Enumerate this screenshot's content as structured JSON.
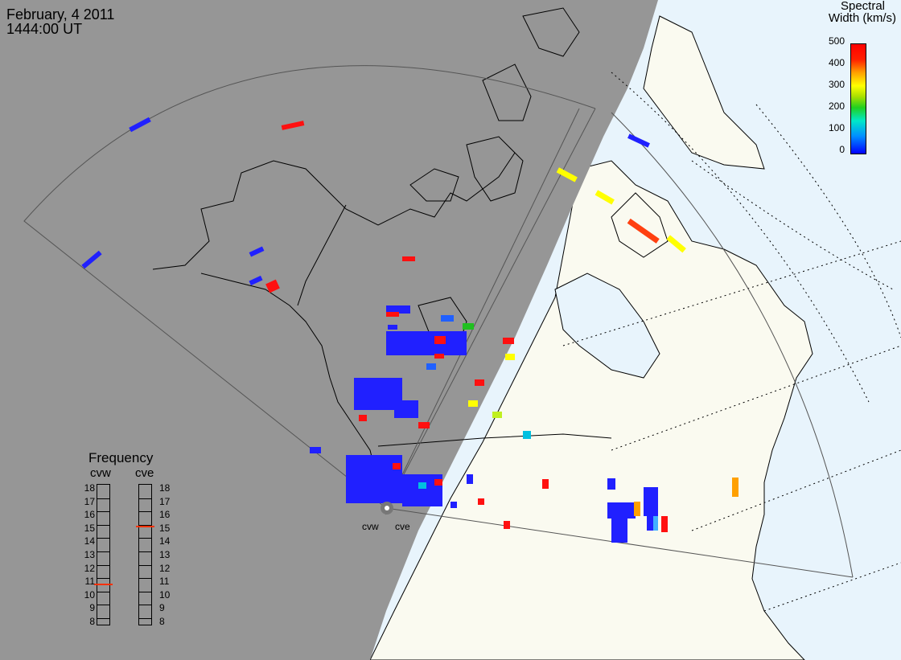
{
  "title": {
    "date": "February, 4 2011",
    "time": "1444:00 UT"
  },
  "colorbar": {
    "title_line1": "Spectral",
    "title_line2": "Width (km/s)",
    "ticks": [
      "500",
      "400",
      "300",
      "200",
      "100",
      "0"
    ]
  },
  "frequency_panel": {
    "title": "Frequency",
    "radar_left": "cvw",
    "radar_right": "cve",
    "scale": [
      "18",
      "17",
      "16",
      "15",
      "14",
      "13",
      "12",
      "11",
      "10",
      "9",
      "8"
    ],
    "cvw_frequency_mhz": 10.8,
    "cve_frequency_mhz": 15.1
  },
  "radar_sites": {
    "west": "cvw",
    "east": "cve"
  },
  "colors": {
    "night": "#969696",
    "land_day": "#fafaf0",
    "ocean_day": "#e8f4fc",
    "low": "#0000ff",
    "high": "#ff0000"
  }
}
